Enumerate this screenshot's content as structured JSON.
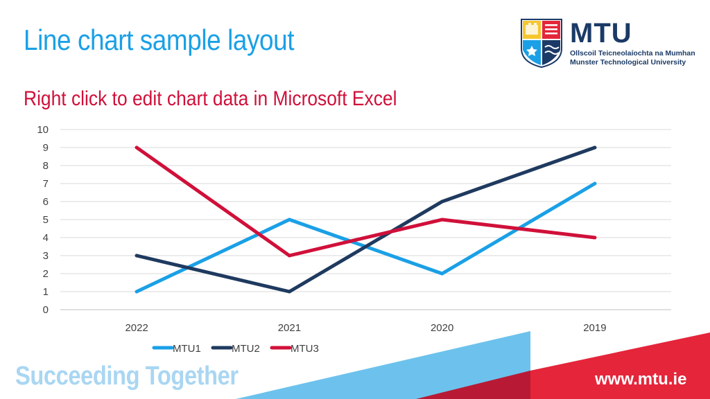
{
  "slide": {
    "title": "Line chart sample layout",
    "subtitle": "Right click to edit chart data in Microsoft Excel"
  },
  "logo": {
    "name": "MTU",
    "line1": "Ollscoil Teicneolaíochta na Mumhan",
    "line2": "Munster Technological University"
  },
  "footer": {
    "tagline": "Succeeding Together",
    "url": "www.mtu.ie"
  },
  "colors": {
    "title_blue": "#1aa0e6",
    "subtitle_red": "#d0103a",
    "navy": "#1b3a66",
    "light_blue_band": "#6cc2ec",
    "red_band": "#e4253a"
  },
  "chart_data": {
    "type": "line",
    "title": "",
    "xlabel": "",
    "ylabel": "",
    "categories": [
      "2022",
      "2021",
      "2020",
      "2019"
    ],
    "series": [
      {
        "name": "MTU1",
        "values": [
          1,
          5,
          2,
          7
        ],
        "color": "#1aa0e6"
      },
      {
        "name": "MTU2",
        "values": [
          3,
          1,
          6,
          9
        ],
        "color": "#1f3a5f"
      },
      {
        "name": "MTU3",
        "values": [
          9,
          3,
          5,
          4
        ],
        "color": "#d0103a"
      }
    ],
    "ylim": [
      0,
      10
    ],
    "yticks": [
      "0",
      "1",
      "2",
      "3",
      "4",
      "5",
      "6",
      "7",
      "8",
      "9",
      "10"
    ],
    "grid": true,
    "legend": "bottom"
  }
}
